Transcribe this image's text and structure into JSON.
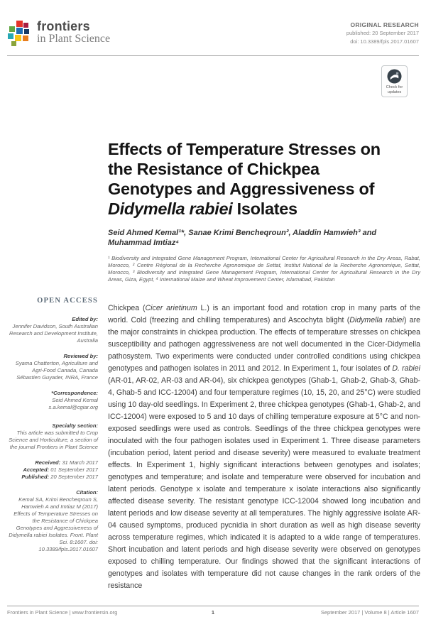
{
  "header": {
    "logo_name": "frontiers",
    "logo_subtitle": "in Plant Science",
    "article_type": "ORIGINAL RESEARCH",
    "published": "published: 20 September 2017",
    "doi": "doi: 10.3389/fpls.2017.01607"
  },
  "update_badge": {
    "line1": "Check for",
    "line2": "updates"
  },
  "title": {
    "lines": [
      [
        {
          "t": "Effects of Temperature Stresses on"
        }
      ],
      [
        {
          "t": "the Resistance of Chickpea"
        }
      ],
      [
        {
          "t": "Genotypes and Aggressiveness of"
        }
      ],
      [
        {
          "t": "Didymella rabiei",
          "i": true
        },
        {
          "t": " Isolates"
        }
      ]
    ]
  },
  "authors": "Seid Ahmed Kemal¹*, Sanae Krimi Bencheqroun², Aladdin Hamwieh³ and Muhammad Imtiaz⁴",
  "affiliations": "¹ Biodiversity and Integrated Gene Management Program, International Center for Agricultural Research in the Dry Areas, Rabat, Morocco, ² Centre Régional de la Recherche Agronomique de Settat, Institut National de la Recherche Agronomique, Settat, Morocco, ³ Biodiversity and Integrated Gene Management Program, International Center for Agricultural Research in the Dry Areas, Giza, Egypt, ⁴ International Maize and Wheat Improvement Center, Islamabad, Pakistan",
  "sidebar": {
    "open_access": "OPEN ACCESS",
    "edited_by_label": "Edited by:",
    "edited_by": "Jennifer Davidson, South Australian Research and Development Institute, Australia",
    "reviewed_by_label": "Reviewed by:",
    "reviewed_by_1": "Syama Chatterton, Agriculture and Agri-Food Canada, Canada",
    "reviewed_by_2": "Sébastien Guyader, INRA, France",
    "correspondence_label": "*Correspondence:",
    "correspondence_name": "Seid Ahmed Kemal",
    "correspondence_email": "s.a.kemal@cgiar.org",
    "specialty_label": "Specialty section:",
    "specialty_text": "This article was submitted to Crop Science and Horticulture, a section of the journal Frontiers in Plant Science",
    "received_label": "Received:",
    "received": " 31 March 2017",
    "accepted_label": "Accepted:",
    "accepted": " 01 September 2017",
    "published_label": "Published:",
    "published": " 20 September 2017",
    "citation_label": "Citation:",
    "citation": "Kemal SA, Krimi Bencheqroun S, Hamwieh A and Imtiaz M (2017) Effects of Temperature Stresses on the Resistance of Chickpea Genotypes and Aggressiveness of Didymella rabiei Isolates. Front. Plant Sci. 8:1607. doi: 10.3389/fpls.2017.01607"
  },
  "abstract_segments": [
    {
      "t": "Chickpea ("
    },
    {
      "t": "Cicer arietinum",
      "i": true
    },
    {
      "t": " L.) is an important food and rotation crop in many parts of the world. Cold (freezing and chilling temperatures) and Ascochyta blight ("
    },
    {
      "t": "Didymella rabiei",
      "i": true
    },
    {
      "t": ") are the major constraints in chickpea production. The effects of temperature stresses on chickpea susceptibility and pathogen aggressiveness are not well documented in the Cicer-Didymella pathosystem. Two experiments were conducted under controlled conditions using chickpea genotypes and pathogen isolates in 2011 and 2012. In Experiment 1, four isolates of "
    },
    {
      "t": "D. rabiei",
      "i": true
    },
    {
      "t": " (AR-01, AR-02, AR-03 and AR-04), six chickpea genotypes (Ghab-1, Ghab-2, Ghab-3, Ghab-4, Ghab-5 and ICC-12004) and four temperature regimes (10, 15, 20, and 25°C) were studied using 10 day-old seedlings. In Experiment 2, three chickpea genotypes (Ghab-1, Ghab-2, and ICC-12004) were exposed to 5 and 10 days of chilling temperature exposure at 5°C and non-exposed seedlings were used as controls. Seedlings of the three chickpea genotypes were inoculated with the four pathogen isolates used in Experiment 1. Three disease parameters (incubation period, latent period and disease severity) were measured to evaluate treatment effects. In Experiment 1, highly significant interactions between genotypes and isolates; genotypes and temperature; and isolate and temperature were observed for incubation and latent periods. Genotype x isolate and temperature x isolate interactions also significantly affected disease severity. The resistant genotype ICC-12004 showed long incubation and latent periods and low disease severity at all temperatures. The highly aggressive isolate AR-04 caused symptoms, produced pycnidia in short duration as well as high disease severity across temperature regimes, which indicated it is adapted to a wide range of temperatures. Short incubation and latent periods and high disease severity were observed on genotypes exposed to chilling temperature. Our findings showed that the significant interactions of genotypes and isolates with temperature did not cause changes in the rank orders of the resistance"
    }
  ],
  "footer": {
    "left": "Frontiers in Plant Science | www.frontiersin.org",
    "page": "1",
    "right": "September 2017 | Volume 8 | Article 1607"
  },
  "colors": {
    "open_access_blue": "#5c6b78",
    "crossmark_dark": "#37424a",
    "logo_red": "#e5332a",
    "logo_green": "#62a744",
    "logo_blue": "#1e6fb5",
    "logo_teal": "#27a9b4",
    "logo_yellow": "#f5c518",
    "logo_orange": "#e87d1e"
  }
}
